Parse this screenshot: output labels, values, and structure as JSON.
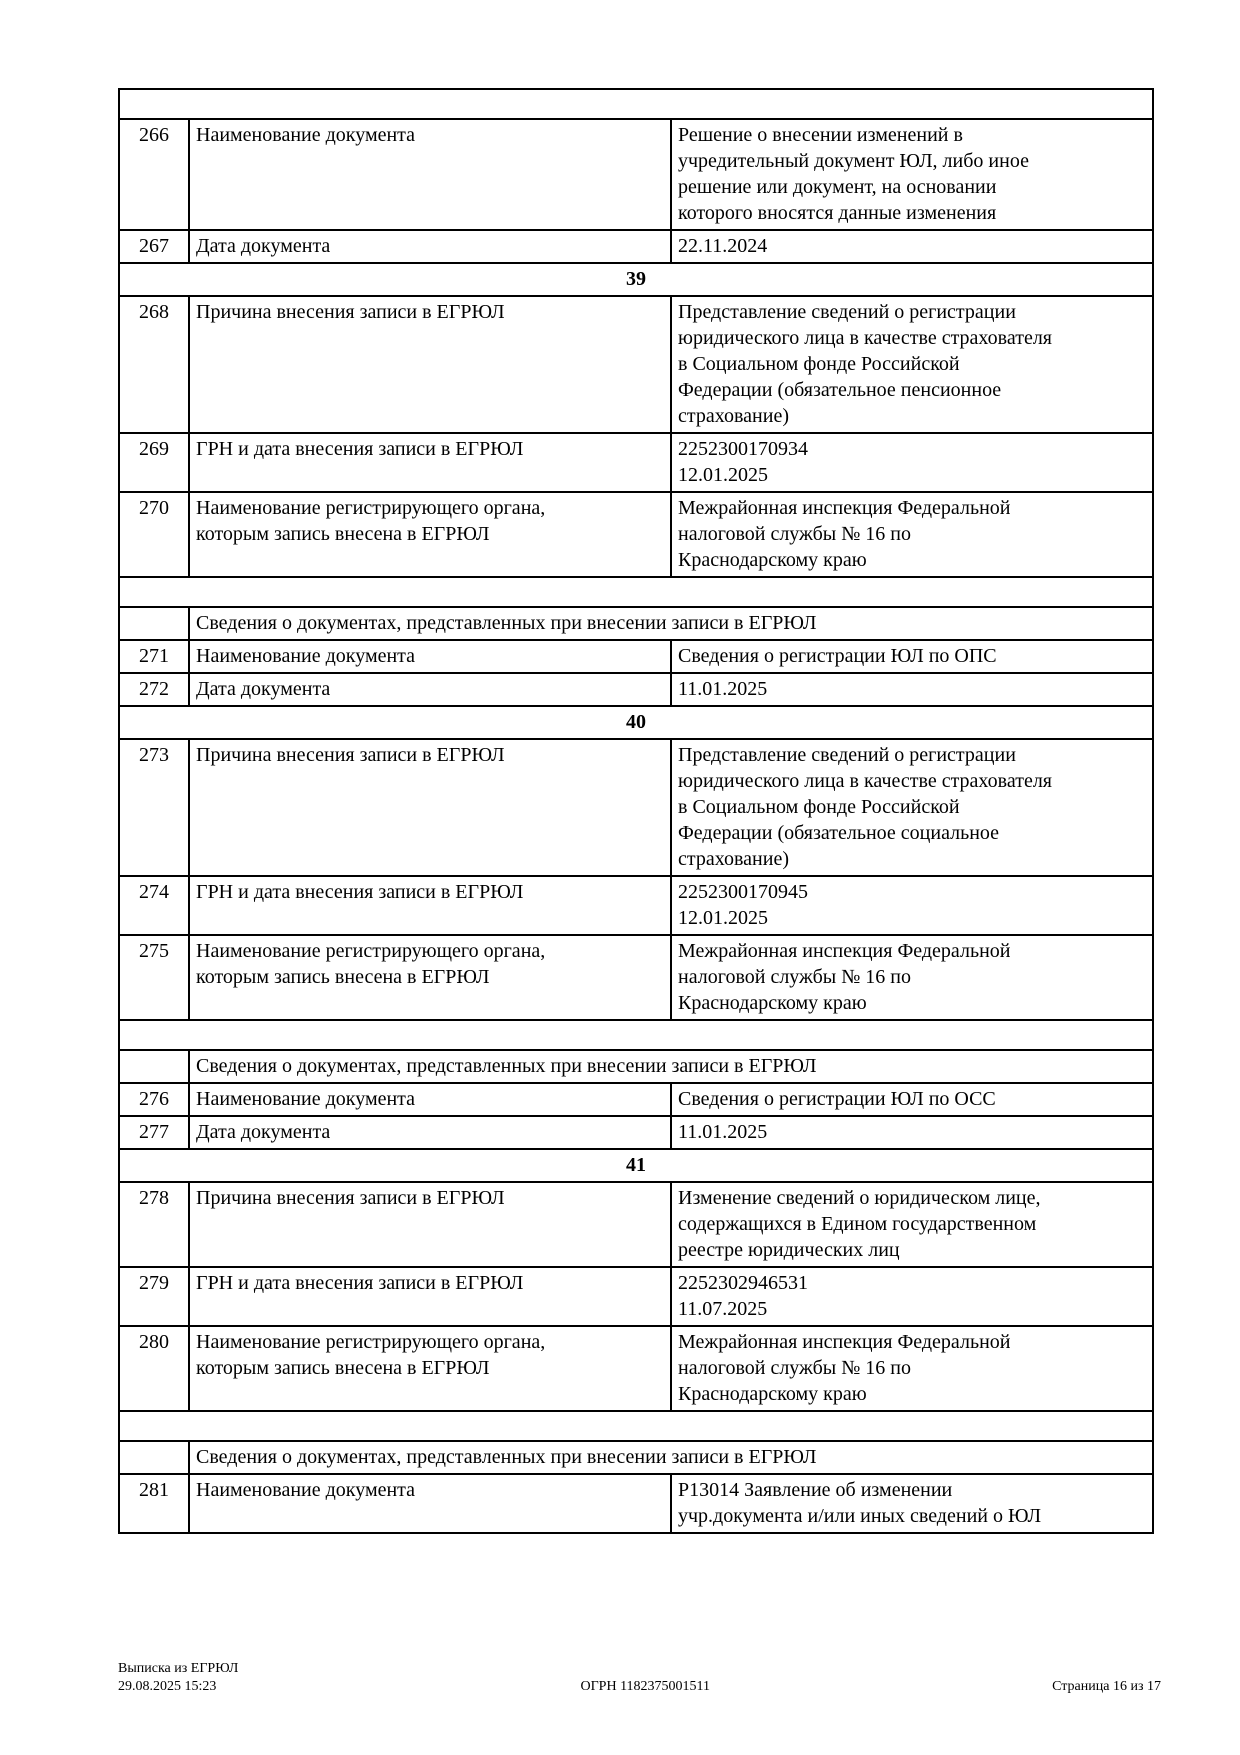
{
  "table": {
    "subheader_text": "Сведения о документах, представленных при внесении записи в ЕГРЮЛ",
    "rows": [
      {
        "type": "spacer"
      },
      {
        "type": "record",
        "num": "266",
        "label": "Наименование документа",
        "value": "Решение о внесении изменений в\nучредительный документ ЮЛ, либо иное\nрешение или документ, на основании\nкоторого вносятся данные изменения"
      },
      {
        "type": "record",
        "num": "267",
        "label": "Дата документа",
        "value": "22.11.2024"
      },
      {
        "type": "section",
        "title": "39"
      },
      {
        "type": "record",
        "num": "268",
        "label": "Причина внесения записи в ЕГРЮЛ",
        "value": "Представление сведений о регистрации\nюридического лица в качестве страхователя\nв Социальном фонде Российской\nФедерации (обязательное пенсионное\nстрахование)"
      },
      {
        "type": "record",
        "num": "269",
        "label": "ГРН и дата внесения записи в ЕГРЮЛ",
        "value": "2252300170934\n12.01.2025"
      },
      {
        "type": "record",
        "num": "270",
        "label": "Наименование регистрирующего органа,\nкоторым запись внесена в ЕГРЮЛ",
        "value": "Межрайонная инспекция Федеральной\nналоговой службы № 16 по\nКраснодарскому краю"
      },
      {
        "type": "spacer"
      },
      {
        "type": "subheader",
        "title": "Сведения о документах, представленных при внесении записи в ЕГРЮЛ"
      },
      {
        "type": "record",
        "num": "271",
        "label": "Наименование документа",
        "value": "Сведения о регистрации ЮЛ по ОПС"
      },
      {
        "type": "record",
        "num": "272",
        "label": "Дата документа",
        "value": "11.01.2025"
      },
      {
        "type": "section",
        "title": "40"
      },
      {
        "type": "record",
        "num": "273",
        "label": "Причина внесения записи в ЕГРЮЛ",
        "value": "Представление сведений о регистрации\nюридического лица в качестве страхователя\nв Социальном фонде Российской\nФедерации (обязательное социальное\nстрахование)"
      },
      {
        "type": "record",
        "num": "274",
        "label": "ГРН и дата внесения записи в ЕГРЮЛ",
        "value": "2252300170945\n12.01.2025"
      },
      {
        "type": "record",
        "num": "275",
        "label": "Наименование регистрирующего органа,\nкоторым запись внесена в ЕГРЮЛ",
        "value": "Межрайонная инспекция Федеральной\nналоговой службы № 16 по\nКраснодарскому краю"
      },
      {
        "type": "spacer"
      },
      {
        "type": "subheader",
        "title": "Сведения о документах, представленных при внесении записи в ЕГРЮЛ"
      },
      {
        "type": "record",
        "num": "276",
        "label": "Наименование документа",
        "value": "Сведения о регистрации ЮЛ по ОСС"
      },
      {
        "type": "record",
        "num": "277",
        "label": "Дата документа",
        "value": "11.01.2025"
      },
      {
        "type": "section",
        "title": "41"
      },
      {
        "type": "record",
        "num": "278",
        "label": "Причина внесения записи в ЕГРЮЛ",
        "value": "Изменение сведений о юридическом лице,\nсодержащихся в Едином государственном\nреестре юридических лиц"
      },
      {
        "type": "record",
        "num": "279",
        "label": "ГРН и дата внесения записи в ЕГРЮЛ",
        "value": "2252302946531\n11.07.2025"
      },
      {
        "type": "record",
        "num": "280",
        "label": "Наименование регистрирующего органа,\nкоторым запись внесена в ЕГРЮЛ",
        "value": "Межрайонная инспекция Федеральной\nналоговой службы № 16 по\nКраснодарскому краю"
      },
      {
        "type": "spacer"
      },
      {
        "type": "subheader",
        "title": "Сведения о документах, представленных при внесении записи в ЕГРЮЛ"
      },
      {
        "type": "record",
        "num": "281",
        "label": "Наименование документа",
        "value": "Р13014 Заявление об изменении\nучр.документа и/или иных сведений о ЮЛ"
      }
    ]
  },
  "footer": {
    "doc_title": "Выписка из ЕГРЮЛ",
    "timestamp": "29.08.2025 15:23",
    "ogrn": "ОГРН 1182375001511",
    "page_number": "Страница 16 из 17"
  }
}
